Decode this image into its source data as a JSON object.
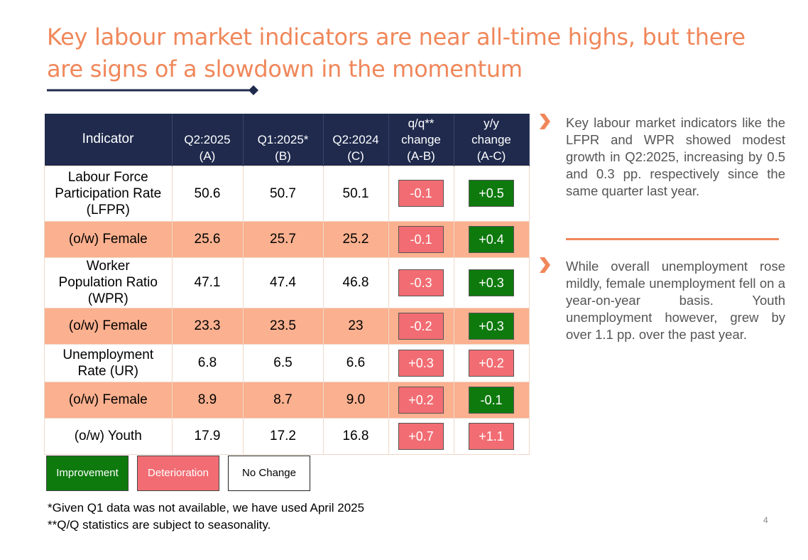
{
  "title": "Key labour market indicators are near all-time highs, but there are signs of a slowdown in the momentum",
  "colors": {
    "accent": "#f0875a",
    "navy": "#1f2a4d",
    "improvement": "#0e7a0e",
    "deterioration": "#f26d73",
    "shade": "#fbb08f"
  },
  "table": {
    "headers": {
      "indicator": "Indicator",
      "a": [
        "Q2:2025",
        "(A)"
      ],
      "b": [
        "Q1:2025*",
        "(B)"
      ],
      "c": [
        "Q2:2024",
        "(C)"
      ],
      "qq": [
        "q/q**",
        "change",
        "(A-B)"
      ],
      "yy": [
        "y/y",
        "change",
        "(A-C)"
      ]
    },
    "rows": [
      {
        "label": [
          "Labour Force",
          "Participation Rate",
          "(LFPR)"
        ],
        "a": "50.6",
        "b": "50.7",
        "c": "50.1",
        "qq": "-0.1",
        "qq_status": "deterioration",
        "yy": "+0.5",
        "yy_status": "improvement"
      },
      {
        "label": [
          "(o/w) Female"
        ],
        "a": "25.6",
        "b": "25.7",
        "c": "25.2",
        "qq": "-0.1",
        "qq_status": "deterioration",
        "yy": "+0.4",
        "yy_status": "improvement"
      },
      {
        "label": [
          "Worker",
          "Population Ratio",
          "(WPR)"
        ],
        "a": "47.1",
        "b": "47.4",
        "c": "46.8",
        "qq": "-0.3",
        "qq_status": "deterioration",
        "yy": "+0.3",
        "yy_status": "improvement"
      },
      {
        "label": [
          "(o/w) Female"
        ],
        "a": "23.3",
        "b": "23.5",
        "c": "23",
        "qq": "-0.2",
        "qq_status": "deterioration",
        "yy": "+0.3",
        "yy_status": "improvement"
      },
      {
        "label": [
          "Unemployment",
          "Rate (UR)"
        ],
        "a": "6.8",
        "b": "6.5",
        "c": "6.6",
        "qq": "+0.3",
        "qq_status": "deterioration",
        "yy": "+0.2",
        "yy_status": "deterioration"
      },
      {
        "label": [
          "(o/w) Female"
        ],
        "a": "8.9",
        "b": "8.7",
        "c": "9.0",
        "qq": "+0.2",
        "qq_status": "deterioration",
        "yy": "-0.1",
        "yy_status": "improvement"
      },
      {
        "label": [
          "(o/w) Youth"
        ],
        "a": "17.9",
        "b": "17.2",
        "c": "16.8",
        "qq": "+0.7",
        "qq_status": "deterioration",
        "yy": "+1.1",
        "yy_status": "deterioration"
      }
    ]
  },
  "legend": {
    "improvement": "Improvement",
    "deterioration": "Deterioration",
    "no_change": "No Change"
  },
  "footnotes": [
    "*Given Q1 data was not available, we have used April 2025",
    "**Q/Q statistics are subject to seasonality."
  ],
  "bullets": [
    "Key labour market indicators like the LFPR and WPR showed modest growth in Q2:2025, increasing by 0.5 and 0.3 pp. respectively since the same quarter last year.",
    "While overall unemployment rose mildly, female unemployment fell on a year-on-year basis. Youth unemployment however, grew by over 1.1 pp. over the past year."
  ],
  "page_number": "4"
}
